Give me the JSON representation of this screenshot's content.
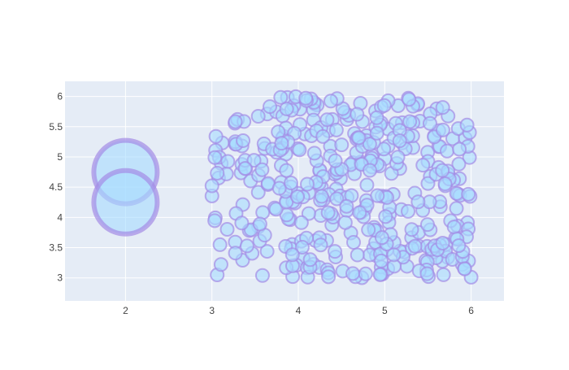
{
  "chart_data": {
    "type": "scatter",
    "title": "",
    "xlabel": "",
    "ylabel": "",
    "xlim": [
      1.3,
      6.38
    ],
    "ylim": [
      2.62,
      6.25
    ],
    "xticks": [
      2,
      3,
      4,
      5,
      6
    ],
    "yticks": [
      3,
      3.5,
      4,
      4.5,
      5,
      5.5,
      6
    ],
    "xtick_labels": [
      "2",
      "3",
      "4",
      "5",
      "6"
    ],
    "ytick_labels": [
      "3",
      "3.5",
      "4",
      "4.5",
      "5",
      "5.5",
      "6"
    ],
    "grid": true,
    "legend": "none",
    "series": [
      {
        "marker": "large-circle",
        "fill": "#a6dcff",
        "stroke": "#a48ce6",
        "points": [
          [
            2,
            4.75
          ],
          [
            2,
            4.25
          ]
        ]
      },
      {
        "marker": "small-circle",
        "fill": "#a6dcff",
        "stroke": "#a48ce6",
        "count": 400,
        "x_range": [
          3,
          6
        ],
        "y_range": [
          3,
          6
        ]
      }
    ]
  },
  "colors": {
    "plot_background": "#e5ecf6",
    "grid": "#ffffff",
    "marker_fill": "#a6dcff",
    "marker_stroke": "#a48ce6"
  }
}
